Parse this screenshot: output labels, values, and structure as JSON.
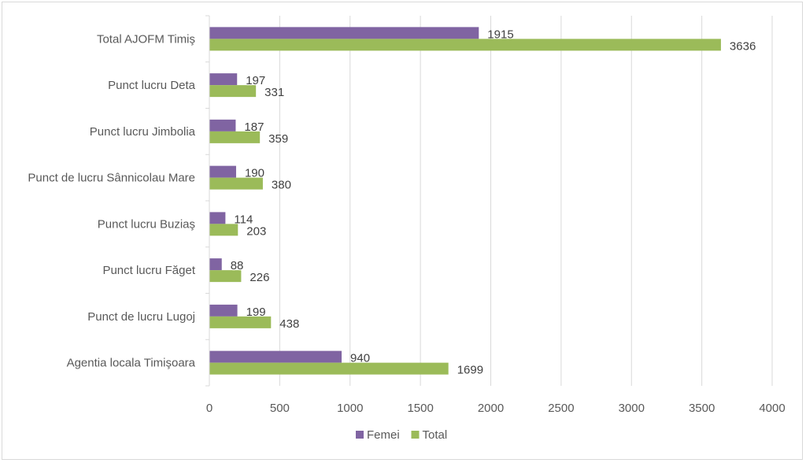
{
  "chart_data": {
    "type": "bar",
    "orientation": "horizontal",
    "categories": [
      "Total AJOFM Timiş",
      "Punct lucru Deta",
      "Punct lucru Jimbolia",
      "Punct de lucru Sânnicolau Mare",
      "Punct lucru Buziaş",
      "Punct lucru Făget",
      "Punct de lucru Lugoj",
      "Agentia locala Timişoara"
    ],
    "series": [
      {
        "name": "Femei",
        "color": "#8064a2",
        "values": [
          1915,
          197,
          187,
          190,
          114,
          88,
          199,
          940
        ]
      },
      {
        "name": "Total",
        "color": "#9bbb59",
        "values": [
          3636,
          331,
          359,
          380,
          203,
          226,
          438,
          1699
        ]
      }
    ],
    "xlim": [
      0,
      4000
    ],
    "xticks": [
      "0",
      "500",
      "1000",
      "1500",
      "2000",
      "2500",
      "3000",
      "3500",
      "4000"
    ],
    "xtick_values": [
      0,
      500,
      1000,
      1500,
      2000,
      2500,
      3000,
      3500,
      4000
    ],
    "grid": "vertical",
    "legend_position": "bottom",
    "data_labels": true
  }
}
